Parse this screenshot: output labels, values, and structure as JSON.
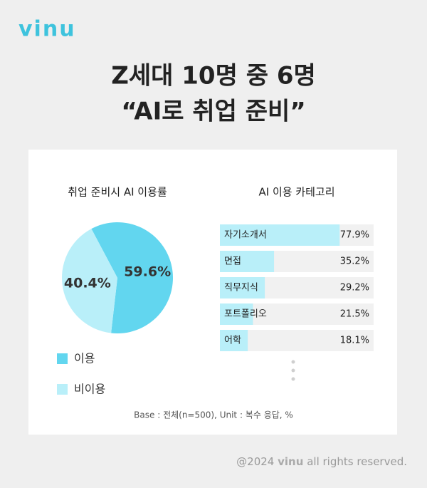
{
  "logo": "vinu",
  "headline": [
    "Z세대 10명 중 6명",
    "“AI로 취업 준비”"
  ],
  "note": "Base : 전체(n=500), Unit : 복수 응답, %",
  "footer": {
    "copyright": "@2024",
    "brand": "vinu",
    "rights": "all rights reserved."
  },
  "chart_data": [
    {
      "type": "pie",
      "title": "취업 준비시 AI 이용률",
      "categories": [
        "이용",
        "비이용"
      ],
      "values": [
        59.6,
        40.4
      ],
      "value_labels": [
        "59.6%",
        "40.4%"
      ],
      "colors": [
        "#62d6ef",
        "#b9eff9"
      ]
    },
    {
      "type": "bar",
      "orientation": "horizontal",
      "title": "AI 이용 카테고리",
      "categories": [
        "자기소개서",
        "면접",
        "직무지식",
        "포트폴리오",
        "어학"
      ],
      "values": [
        77.9,
        35.2,
        29.2,
        21.5,
        18.1
      ],
      "value_labels": [
        "77.9%",
        "35.2%",
        "29.2%",
        "21.5%",
        "18.1%"
      ],
      "xlim": [
        0,
        100
      ],
      "color": "#b9eff9"
    }
  ]
}
